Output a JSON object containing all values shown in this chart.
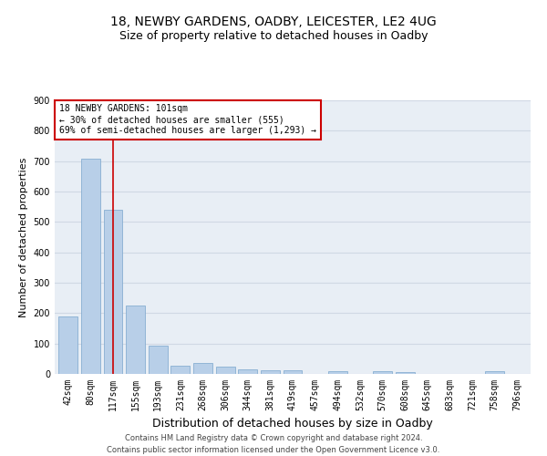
{
  "title1": "18, NEWBY GARDENS, OADBY, LEICESTER, LE2 4UG",
  "title2": "Size of property relative to detached houses in Oadby",
  "xlabel": "Distribution of detached houses by size in Oadby",
  "ylabel": "Number of detached properties",
  "categories": [
    "42sqm",
    "80sqm",
    "117sqm",
    "155sqm",
    "193sqm",
    "231sqm",
    "268sqm",
    "306sqm",
    "344sqm",
    "381sqm",
    "419sqm",
    "457sqm",
    "494sqm",
    "532sqm",
    "570sqm",
    "608sqm",
    "645sqm",
    "683sqm",
    "721sqm",
    "758sqm",
    "796sqm"
  ],
  "values": [
    190,
    707,
    540,
    224,
    92,
    27,
    37,
    24,
    15,
    12,
    12,
    0,
    10,
    0,
    9,
    7,
    0,
    0,
    0,
    9,
    0
  ],
  "bar_color": "#b8cfe8",
  "bar_edge_color": "#7aa5cc",
  "annotation_line1": "18 NEWBY GARDENS: 101sqm",
  "annotation_line2": "← 30% of detached houses are smaller (555)",
  "annotation_line3": "69% of semi-detached houses are larger (1,293) →",
  "vline_x": 2.0,
  "vline_color": "#cc0000",
  "box_color": "#cc0000",
  "ylim": [
    0,
    900
  ],
  "yticks": [
    0,
    100,
    200,
    300,
    400,
    500,
    600,
    700,
    800,
    900
  ],
  "footer1": "Contains HM Land Registry data © Crown copyright and database right 2024.",
  "footer2": "Contains public sector information licensed under the Open Government Licence v3.0.",
  "bg_color": "#ffffff",
  "plot_bg_color": "#e8eef5",
  "grid_color": "#d0d8e4",
  "title1_fontsize": 10,
  "title2_fontsize": 9,
  "xlabel_fontsize": 9,
  "ylabel_fontsize": 8,
  "tick_fontsize": 7,
  "footer_fontsize": 6
}
